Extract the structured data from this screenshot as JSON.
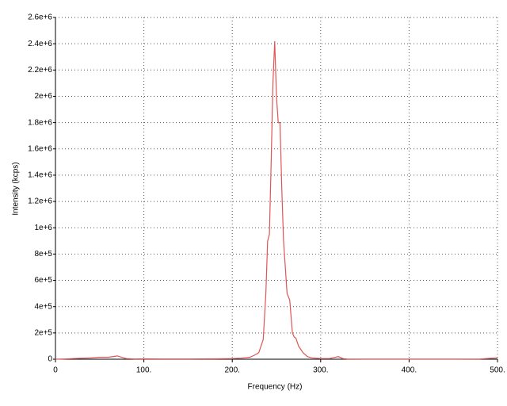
{
  "chart_data": {
    "type": "line",
    "xlabel": "Frequency (Hz)",
    "ylabel": "Intensity (kcps)",
    "x": [
      0,
      10,
      20,
      40,
      50,
      60,
      70,
      75,
      80,
      90,
      100,
      120,
      150,
      180,
      200,
      210,
      220,
      225,
      230,
      235,
      238,
      240,
      242,
      244,
      246,
      248,
      250,
      252,
      254,
      256,
      258,
      260,
      262,
      265,
      268,
      270,
      272,
      275,
      280,
      285,
      290,
      300,
      310,
      320,
      325,
      330,
      350,
      400,
      450,
      480,
      500
    ],
    "series": [
      {
        "name": "Intensity",
        "color": "#e05555",
        "values": [
          0,
          2000,
          5000,
          10000,
          15000,
          15000,
          25000,
          15000,
          5000,
          2000,
          3000,
          2000,
          2000,
          3000,
          5000,
          8000,
          15000,
          30000,
          50000,
          150000,
          500000,
          900000,
          950000,
          1500000,
          2100000,
          2420000,
          2000000,
          1800000,
          1800000,
          1300000,
          900000,
          700000,
          500000,
          450000,
          200000,
          170000,
          160000,
          100000,
          50000,
          20000,
          10000,
          5000,
          5000,
          20000,
          5000,
          2000,
          1000,
          1000,
          1000,
          2000,
          10000
        ]
      }
    ],
    "xlim": [
      0,
      500
    ],
    "xticks": [
      0,
      {
        "value": 100,
        "label": "100."
      },
      {
        "value": 200,
        "label": "200."
      },
      {
        "value": 300,
        "label": "300."
      },
      {
        "value": 400,
        "label": "400."
      },
      {
        "value": 500,
        "label": "500."
      }
    ],
    "ylim": [
      0,
      2600000
    ],
    "yticks": [
      0,
      {
        "value": 200000,
        "label": "2e+5"
      },
      {
        "value": 400000,
        "label": "4e+5"
      },
      {
        "value": 600000,
        "label": "6e+5"
      },
      {
        "value": 800000,
        "label": "8e+5"
      },
      {
        "value": 1000000,
        "label": "1e+6"
      },
      {
        "value": 1200000,
        "label": "1.2e+6"
      },
      {
        "value": 1400000,
        "label": "1.4e+6"
      },
      {
        "value": 1600000,
        "label": "1.6e+6"
      },
      {
        "value": 1800000,
        "label": "1.8e+6"
      },
      {
        "value": 2000000,
        "label": "2e+6"
      },
      {
        "value": 2200000,
        "label": "2.2e+6"
      },
      {
        "value": 2400000,
        "label": "2.4e+6"
      },
      {
        "value": 2600000,
        "label": "2.6e+6"
      }
    ],
    "grid": true
  }
}
